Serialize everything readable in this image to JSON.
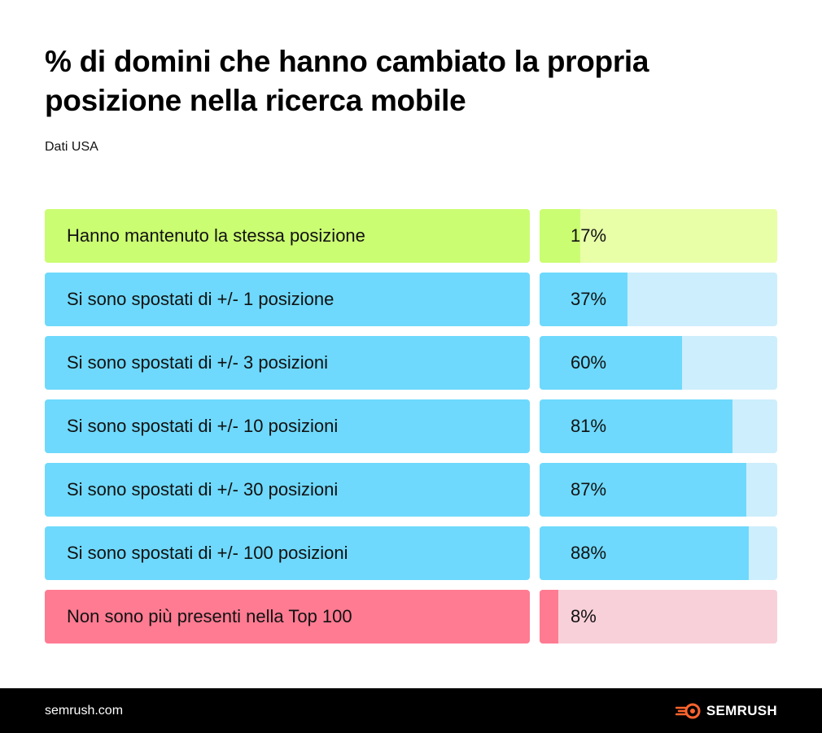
{
  "header": {
    "title": "% di domini che hanno cambiato la propria posizione nella ricerca mobile",
    "subtitle": "Dati USA"
  },
  "chart_data": {
    "type": "bar",
    "orientation": "horizontal",
    "title": "% di domini che hanno cambiato la propria posizione nella ricerca mobile",
    "subtitle": "Dati USA",
    "categories": [
      "Hanno mantenuto la stessa posizione",
      "Si sono spostati di +/- 1 posizione",
      "Si sono spostati di +/- 3 posizioni",
      "Si sono spostati di +/- 10 posizioni",
      "Si sono spostati di +/- 30 posizioni",
      "Si sono spostati di +/- 100 posizioni",
      "Non sono più presenti nella Top 100"
    ],
    "values": [
      17,
      37,
      60,
      81,
      87,
      88,
      8
    ],
    "value_labels": [
      "17%",
      "37%",
      "60%",
      "81%",
      "87%",
      "88%",
      "8%"
    ],
    "xlim": [
      0,
      100
    ],
    "grid": false,
    "colors": {
      "stable": {
        "label": "#cbfd72",
        "fill": "#cbfd72",
        "track": "#e8ffa8"
      },
      "moved": {
        "label": "#6ed9fc",
        "fill": "#6ed9fc",
        "track": "#cdeefc"
      },
      "dropped": {
        "label": "#ff7b92",
        "fill": "#ff7b92",
        "track": "#f8d0d9"
      }
    },
    "row_color_keys": [
      "stable",
      "moved",
      "moved",
      "moved",
      "moved",
      "moved",
      "dropped"
    ]
  },
  "footer": {
    "site": "semrush.com",
    "brand": "SEMRUSH",
    "brand_icon": "semrush-flame-icon",
    "brand_color": "#ff642d"
  }
}
